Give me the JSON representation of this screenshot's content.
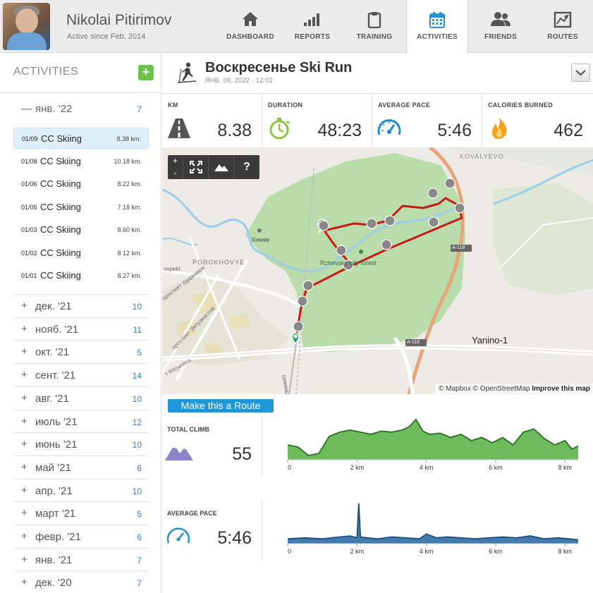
{
  "user": {
    "name": "Nikolai Pitirimov",
    "since": "Active since Feb, 2014"
  },
  "nav": [
    {
      "label": "DASHBOARD",
      "icon": "home-icon"
    },
    {
      "label": "REPORTS",
      "icon": "bar-chart-icon"
    },
    {
      "label": "TRAINING",
      "icon": "clipboard-icon"
    },
    {
      "label": "ACTIVITIES",
      "icon": "calendar-icon",
      "active": true
    },
    {
      "label": "FRIENDS",
      "icon": "friends-icon"
    },
    {
      "label": "ROUTES",
      "icon": "map-icon"
    }
  ],
  "sidebar": {
    "title": "ACTIVITIES",
    "add_label": "+",
    "open_month": {
      "sign": "—",
      "name": "янв. '22",
      "count": "7"
    },
    "activities": [
      {
        "date": "01/09",
        "name": "CC Skiing",
        "distance": "8.38 km.",
        "selected": true
      },
      {
        "date": "01/08",
        "name": "CC Skiing",
        "distance": "10.18 km."
      },
      {
        "date": "01/06",
        "name": "CC Skiing",
        "distance": "8.22 km."
      },
      {
        "date": "01/05",
        "name": "CC Skiing",
        "distance": "7.18 km."
      },
      {
        "date": "01/03",
        "name": "CC Skiing",
        "distance": "8.60 km."
      },
      {
        "date": "01/02",
        "name": "CC Skiing",
        "distance": "8.12 km."
      },
      {
        "date": "01/01",
        "name": "CC Skiing",
        "distance": "8.27 km."
      }
    ],
    "months": [
      {
        "sign": "+",
        "name": "дек. '21",
        "count": "10"
      },
      {
        "sign": "+",
        "name": "нояб. '21",
        "count": "11"
      },
      {
        "sign": "+",
        "name": "окт. '21",
        "count": "5"
      },
      {
        "sign": "+",
        "name": "сент. '21",
        "count": "14"
      },
      {
        "sign": "+",
        "name": "авг. '21",
        "count": "10"
      },
      {
        "sign": "+",
        "name": "июль '21",
        "count": "12"
      },
      {
        "sign": "+",
        "name": "июнь '21",
        "count": "10"
      },
      {
        "sign": "+",
        "name": "май '21",
        "count": "6"
      },
      {
        "sign": "+",
        "name": "апр. '21",
        "count": "10"
      },
      {
        "sign": "+",
        "name": "март '21",
        "count": "5"
      },
      {
        "sign": "+",
        "name": "февр. '21",
        "count": "6"
      },
      {
        "sign": "+",
        "name": "янв. '21",
        "count": "7"
      },
      {
        "sign": "+",
        "name": "дек. '20",
        "count": "7"
      }
    ]
  },
  "activity": {
    "title": "Воскресенье Ski Run",
    "subtitle": "ЯНВ. 09, 2022 · 12:02"
  },
  "stats": [
    {
      "label": "KM",
      "value": "8.38",
      "icon": "road-icon"
    },
    {
      "label": "DURATION",
      "value": "48:23",
      "icon": "stopwatch-icon"
    },
    {
      "label": "AVERAGE PACE",
      "value": "5:46",
      "icon": "speedometer-icon"
    },
    {
      "label": "CALORIES BURNED",
      "value": "462",
      "icon": "flame-icon"
    }
  ],
  "map": {
    "controls": {
      "zoom_in": "+",
      "zoom_out": "-",
      "help": "?"
    },
    "attribution": {
      "mapbox": "© Mapbox",
      "osm": "© OpenStreetMap",
      "improve": "Improve this map"
    },
    "labels": {
      "kovalyevo": "KOVALYEVO",
      "khimik": "Химик",
      "porokhovye": "POROKHOVYE",
      "forest": "Rzhevsky city forest",
      "yanino": "Yanino-1",
      "a118a": "A-118",
      "a118b": "A-118",
      "udarnikov": "проспект Ударников",
      "entuziastov": "проспект Энтузиастов",
      "kosygina": "т Косыгина",
      "prospekt": "ospekt",
      "rail": "семены"
    }
  },
  "route_button": "Make this a Route",
  "climb": {
    "label": "TOTAL CLIMB",
    "value": "55",
    "icon": "mountains-icon"
  },
  "pace": {
    "label": "AVERAGE PACE",
    "value": "5:46",
    "icon": "speedometer-icon"
  },
  "chart_data": [
    {
      "type": "area",
      "name": "elevation",
      "color": "#5cb54a",
      "x_ticks": [
        "0",
        "2 km",
        "4 km",
        "6 km",
        "8 km"
      ],
      "x": [
        0,
        0.3,
        0.6,
        0.9,
        1.2,
        1.5,
        1.8,
        2.1,
        2.4,
        2.7,
        3.0,
        3.3,
        3.5,
        3.7,
        3.9,
        4.1,
        4.4,
        4.7,
        5.0,
        5.3,
        5.6,
        5.9,
        6.2,
        6.5,
        6.8,
        7.1,
        7.4,
        7.7,
        8.0,
        8.2,
        8.38
      ],
      "values": [
        14,
        12,
        4,
        6,
        22,
        26,
        28,
        26,
        24,
        27,
        26,
        28,
        31,
        38,
        27,
        24,
        25,
        21,
        24,
        18,
        21,
        16,
        21,
        14,
        26,
        29,
        20,
        14,
        18,
        10,
        13
      ]
    },
    {
      "type": "area",
      "name": "pace",
      "color": "#2e6da4",
      "x_ticks": [
        "0",
        "2 km",
        "4 km",
        "6 km",
        "8 km"
      ],
      "x": [
        0,
        0.5,
        1.0,
        1.5,
        1.8,
        2.0,
        2.05,
        2.1,
        2.3,
        2.6,
        3.0,
        3.4,
        3.8,
        4.0,
        4.3,
        4.6,
        5.0,
        5.4,
        5.8,
        6.2,
        6.6,
        7.0,
        7.4,
        7.8,
        8.1,
        8.38
      ],
      "values": [
        5,
        6,
        5,
        7,
        8,
        6,
        42,
        7,
        6,
        5,
        7,
        6,
        5,
        10,
        6,
        7,
        6,
        5,
        6,
        7,
        6,
        8,
        5,
        6,
        5,
        4
      ]
    }
  ]
}
